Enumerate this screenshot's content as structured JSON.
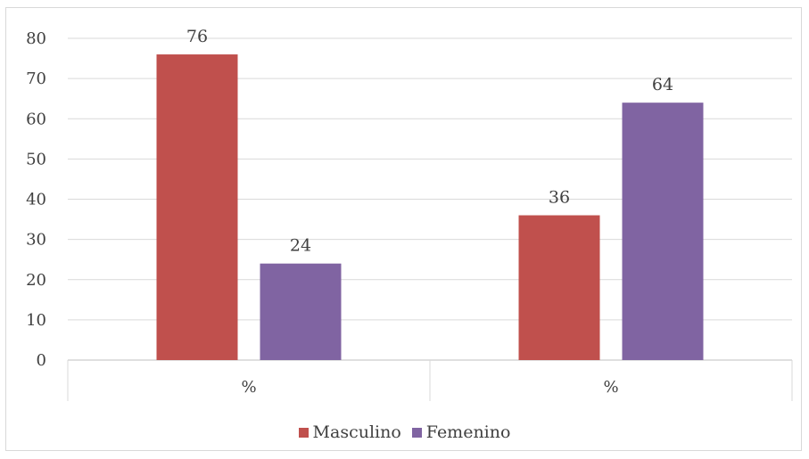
{
  "chart_data": {
    "type": "bar",
    "categories": [
      "%",
      "%"
    ],
    "series": [
      {
        "name": "Masculino",
        "values": [
          76,
          36
        ],
        "color": "#c0504d"
      },
      {
        "name": "Femenino",
        "values": [
          24,
          64
        ],
        "color": "#8064a2"
      }
    ],
    "ylim": [
      0,
      80
    ],
    "yticks": [
      0,
      10,
      20,
      30,
      40,
      50,
      60,
      70,
      80
    ],
    "grid": true,
    "legend": "bottom",
    "data_labels": true
  }
}
